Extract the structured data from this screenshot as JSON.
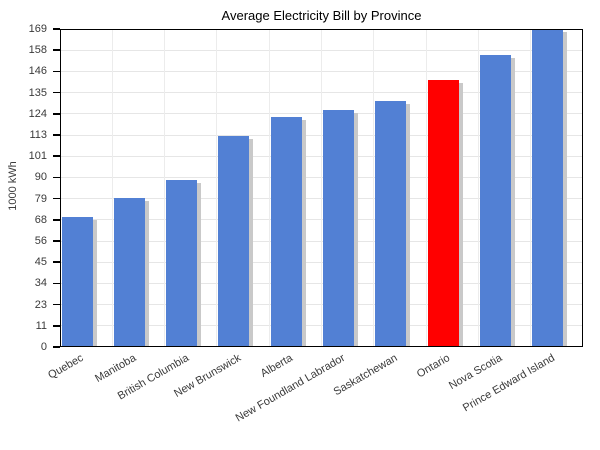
{
  "chart_data": {
    "type": "bar",
    "title": "Average Electricity Bill by Province",
    "xlabel": "",
    "ylabel": "1000 kWh",
    "categories": [
      "Quebec",
      "Manitoba",
      "British Columbia",
      "New Brunswick",
      "Alberta",
      "New Foundland Labrador",
      "Saskatchewan",
      "Ontario",
      "Nova Scotia",
      "Prince Edward Island"
    ],
    "values": [
      69,
      79,
      89,
      112,
      122,
      126,
      131,
      142,
      155,
      169
    ],
    "ylim": [
      0,
      169
    ],
    "y_tick_labels": [
      "0",
      "11",
      "23",
      "34",
      "45",
      "56",
      "68",
      "79",
      "90",
      "101",
      "113",
      "124",
      "135",
      "146",
      "158",
      "169"
    ],
    "grid": true,
    "legend": "none",
    "highlight": {
      "category": "Ontario",
      "index": 7,
      "color": "#ff0000"
    },
    "colors": {
      "bar": "#5280d4",
      "highlight": "#ff0000",
      "bar_shadow": "#c9c9c9",
      "grid_line": "#e6e6e6",
      "spine": "#000000",
      "tick_text": "#3a3a3a",
      "title_text": "#000000"
    }
  }
}
